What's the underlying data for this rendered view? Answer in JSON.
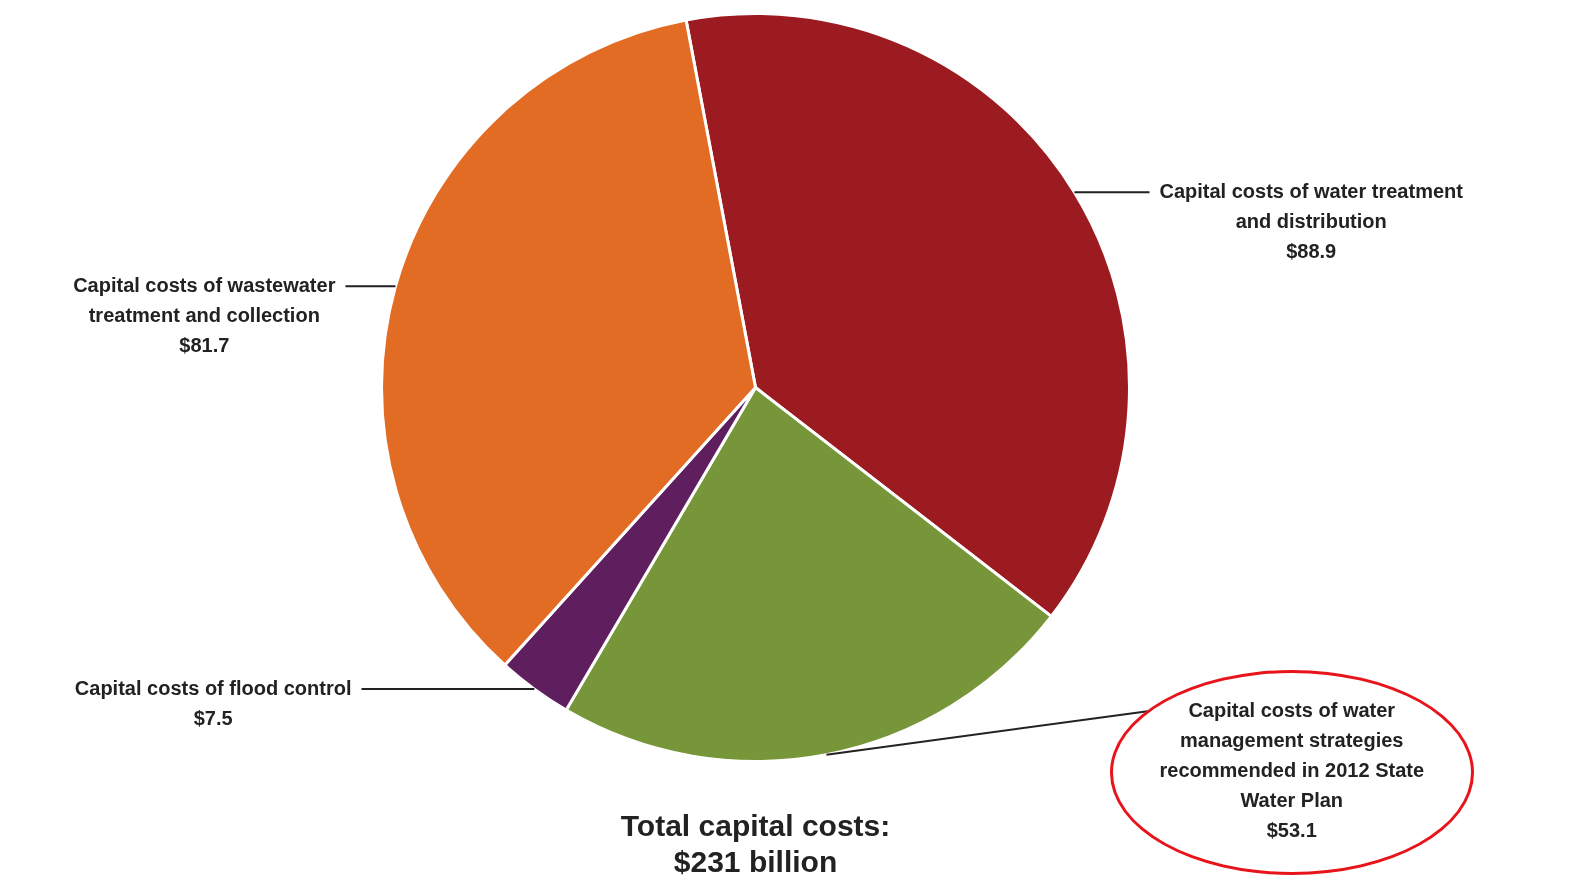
{
  "chart_data": {
    "type": "pie",
    "title": "Total capital costs: $231 billion",
    "categories": [
      "Capital costs of water treatment and distribution",
      "Capital costs of water management strategies recommended in 2012 State Water Plan",
      "Capital costs of flood control",
      "Capital costs of wastewater treatment and collection"
    ],
    "values": [
      88.9,
      53.1,
      7.5,
      81.7
    ],
    "value_labels": [
      "$88.9",
      "$53.1",
      "$7.5",
      "$81.7"
    ],
    "colors": [
      "#9b1b20",
      "#77963a",
      "#5f1f5f",
      "#e36c25"
    ],
    "legend": false
  }
}
